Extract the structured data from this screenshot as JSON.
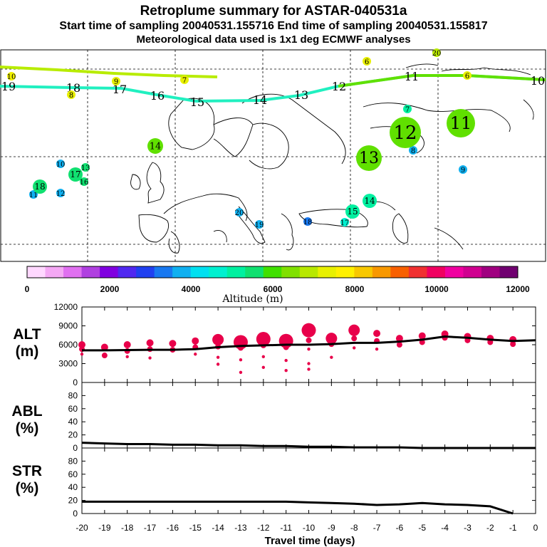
{
  "header": {
    "title": "Retroplume summary for ASTAR-040531a",
    "line2": "Start time of sampling 20040531.155716     End time of sampling 20040531.155817",
    "line3": "Meteorological data used is 1x1 deg ECMWF analyses"
  },
  "colors": {
    "palette": [
      "#ffd8ff",
      "#f4a8f4",
      "#e070f0",
      "#b040e0",
      "#8000e0",
      "#5028f0",
      "#2040f0",
      "#1878f0",
      "#10b0f0",
      "#00e0f0",
      "#00f0d0",
      "#00f0a0",
      "#10e070",
      "#40e000",
      "#80e000",
      "#b8e800",
      "#e8f000",
      "#fff000",
      "#f8c800",
      "#f89800",
      "#f86000",
      "#f03030",
      "#f00060",
      "#f000a0",
      "#d00090",
      "#a00080",
      "#700070"
    ],
    "plume_light": "#b8ec00",
    "plume_cyan": "#20f0c0",
    "plume_green": "#60e000",
    "alt_marker": "#e8004a",
    "line": "#000000"
  },
  "colorbar": {
    "tick_labels": [
      "0",
      "2000",
      "4000",
      "6000",
      "8000",
      "10000",
      "12000"
    ],
    "title": "Altitude (m)"
  },
  "map": {
    "track_cyan_labels": [
      "19",
      "18",
      "17",
      "16",
      "15",
      "14",
      "13",
      "12"
    ],
    "track_green_labels": [
      "11",
      "10"
    ],
    "small_labels": [
      {
        "t": "10",
        "c": "#f0f000"
      },
      {
        "t": "9",
        "c": "#e8f000"
      },
      {
        "t": "8",
        "c": "#e8f000"
      },
      {
        "t": "7",
        "c": "#e8f000"
      },
      {
        "t": "6",
        "c": "#e8f000"
      },
      {
        "t": "20",
        "c": "#b8e800"
      },
      {
        "t": "6",
        "c": "#e8f000"
      },
      {
        "t": "7",
        "c": "#00f0a0"
      },
      {
        "t": "8",
        "c": "#10b0f0"
      },
      {
        "t": "9",
        "c": "#10b0f0"
      },
      {
        "t": "10",
        "c": "#10b0f0"
      },
      {
        "t": "13",
        "c": "#10e070"
      },
      {
        "t": "11",
        "c": "#10b0f0"
      },
      {
        "t": "12",
        "c": "#10b0f0"
      },
      {
        "t": "16",
        "c": "#10e070"
      },
      {
        "t": "20",
        "c": "#10b0f0"
      },
      {
        "t": "19",
        "c": "#10b0f0"
      },
      {
        "t": "18",
        "c": "#1878f0"
      },
      {
        "t": "17",
        "c": "#00f0d0"
      }
    ],
    "big_labels": [
      {
        "t": "12",
        "c": "#60e000"
      },
      {
        "t": "11",
        "c": "#60e000"
      },
      {
        "t": "13",
        "c": "#60e000"
      },
      {
        "t": "14",
        "c": "#60e000"
      },
      {
        "t": "17",
        "c": "#10e070"
      },
      {
        "t": "18",
        "c": "#10e070"
      },
      {
        "t": "14",
        "c": "#00f0a0"
      },
      {
        "t": "15",
        "c": "#00f0a0"
      }
    ]
  },
  "chart_data": [
    {
      "type": "line",
      "panel": "ALT",
      "ylabel_line1": "ALT",
      "ylabel_line2": "(m)",
      "xlabel": "Travel time (days)",
      "x": [
        -20,
        -19,
        -18,
        -17,
        -16,
        -15,
        -14,
        -13,
        -12,
        -11,
        -10,
        -9,
        -8,
        -7,
        -6,
        -5,
        -4,
        -3,
        -2,
        -1,
        0
      ],
      "values": [
        5100,
        5100,
        5150,
        5200,
        5200,
        5300,
        5600,
        5800,
        5900,
        6000,
        6000,
        6100,
        6300,
        6300,
        6500,
        6800,
        7300,
        7100,
        6800,
        6600,
        6700
      ],
      "ylim": [
        0,
        12000
      ],
      "yticks": [
        "0",
        "3000",
        "6000",
        "9000",
        "12000"
      ],
      "xticklabels": [
        "-20",
        "-19",
        "-18",
        "-17",
        "-16",
        "-15",
        "-14",
        "-13",
        "-12",
        "-11",
        "-10",
        "-9",
        "-8",
        "-7",
        "-6",
        "-5",
        "-4",
        "-3",
        "-2",
        "-1",
        "0"
      ],
      "markers": [
        {
          "x": -20,
          "alt": [
            6000,
            5300,
            4500
          ]
        },
        {
          "x": -19,
          "alt": [
            5600,
            4300
          ]
        },
        {
          "x": -18,
          "alt": [
            6000,
            5000,
            4100
          ]
        },
        {
          "x": -17,
          "alt": [
            6300,
            5300,
            3900
          ]
        },
        {
          "x": -16,
          "alt": [
            6200,
            5200
          ]
        },
        {
          "x": -15,
          "alt": [
            6600,
            5600,
            4500
          ]
        },
        {
          "x": -14,
          "alt": [
            6800,
            5700,
            4000,
            2900
          ]
        },
        {
          "x": -13,
          "alt": [
            6400,
            5500,
            3600,
            1600
          ]
        },
        {
          "x": -12,
          "alt": [
            6900,
            5900,
            4100,
            2400
          ]
        },
        {
          "x": -11,
          "alt": [
            6600,
            5600,
            3500,
            1900
          ]
        },
        {
          "x": -10,
          "alt": [
            8300,
            6700,
            5300,
            3000,
            2100
          ]
        },
        {
          "x": -9,
          "alt": [
            7000,
            6100,
            4000
          ]
        },
        {
          "x": -8,
          "alt": [
            8300,
            7000,
            5500
          ]
        },
        {
          "x": -7,
          "alt": [
            7800,
            6600,
            5300
          ]
        },
        {
          "x": -6,
          "alt": [
            7000,
            6000
          ]
        },
        {
          "x": -5,
          "alt": [
            7400,
            6400
          ]
        },
        {
          "x": -4,
          "alt": [
            7700,
            7100
          ]
        },
        {
          "x": -3,
          "alt": [
            7300,
            6700
          ]
        },
        {
          "x": -2,
          "alt": [
            7000,
            6400
          ]
        },
        {
          "x": -1,
          "alt": [
            6800,
            6100
          ]
        }
      ]
    },
    {
      "type": "line",
      "panel": "ABL",
      "ylabel_line1": "ABL",
      "ylabel_line2": "(%)",
      "x": [
        -20,
        -19,
        -18,
        -17,
        -16,
        -15,
        -14,
        -13,
        -12,
        -11,
        -10,
        -9,
        -8,
        -7,
        -6,
        -5,
        -4,
        -3,
        -2,
        -1,
        0
      ],
      "values": [
        8,
        7,
        6,
        6,
        5,
        5,
        4,
        4,
        3,
        3,
        2,
        2,
        1,
        1,
        1,
        0,
        0,
        0,
        0,
        0,
        0
      ],
      "ylim": [
        0,
        100
      ],
      "yticks": [
        "0",
        "20",
        "40",
        "60",
        "80"
      ]
    },
    {
      "type": "line",
      "panel": "STR",
      "ylabel_line1": "STR",
      "ylabel_line2": "(%)",
      "x": [
        -20,
        -19,
        -18,
        -17,
        -16,
        -15,
        -14,
        -13,
        -12,
        -11,
        -10,
        -9,
        -8,
        -7,
        -6,
        -5,
        -4,
        -3,
        -2,
        -1,
        0
      ],
      "values": [
        18,
        18,
        18,
        18,
        18,
        18,
        18,
        18,
        18,
        18,
        17,
        16,
        15,
        13,
        14,
        16,
        14,
        13,
        11,
        0,
        null
      ],
      "ylim": [
        0,
        100
      ],
      "yticks": [
        "0",
        "20",
        "40",
        "60",
        "80"
      ]
    }
  ]
}
